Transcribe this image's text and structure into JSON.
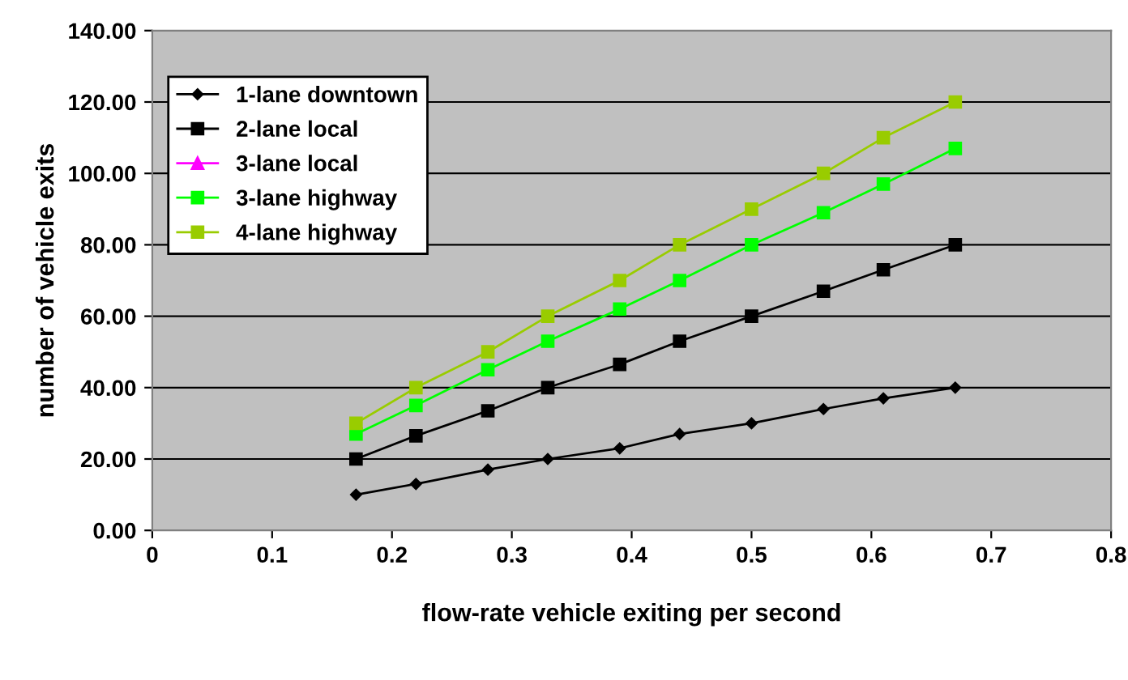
{
  "chart_data": {
    "type": "line",
    "xlabel": "flow-rate vehicle exiting per second",
    "ylabel": "number of vehicle exits",
    "x": [
      0.17,
      0.22,
      0.28,
      0.33,
      0.39,
      0.44,
      0.5,
      0.56,
      0.61,
      0.67
    ],
    "series": [
      {
        "name": "1-lane downtown",
        "color": "#000000",
        "marker": "diamond",
        "values": [
          10,
          13,
          17,
          20,
          23,
          27,
          30,
          34,
          37,
          40
        ]
      },
      {
        "name": "2-lane local",
        "color": "#000000",
        "marker": "square",
        "values": [
          20,
          26.5,
          33.5,
          40,
          46.5,
          53,
          60,
          67,
          73,
          80
        ]
      },
      {
        "name": "3-lane local",
        "color": "#ff00ff",
        "marker": "triangle",
        "values": [
          null,
          null,
          null,
          null,
          null,
          null,
          null,
          null,
          null,
          null
        ]
      },
      {
        "name": "3-lane highway",
        "color": "#00ff00",
        "marker": "square",
        "values": [
          27,
          35,
          45,
          53,
          62,
          70,
          80,
          89,
          97,
          107
        ]
      },
      {
        "name": "4-lane highway",
        "color": "#99cc00",
        "marker": "square",
        "values": [
          30,
          40,
          50,
          60,
          70,
          80,
          90,
          100,
          110,
          120
        ]
      }
    ],
    "xlim": [
      0,
      0.8
    ],
    "xticks": [
      {
        "value": 0,
        "label": "0"
      },
      0.1,
      0.2,
      0.3,
      0.4,
      0.5,
      0.6,
      0.7,
      0.8
    ],
    "ylim": [
      0,
      140
    ],
    "yticks": [
      {
        "value": 0,
        "label": "0.00"
      },
      {
        "value": 20,
        "label": "20.00"
      },
      {
        "value": 40,
        "label": "40.00"
      },
      {
        "value": 60,
        "label": "60.00"
      },
      {
        "value": 80,
        "label": "80.00"
      },
      {
        "value": 100,
        "label": "100.00"
      },
      {
        "value": 120,
        "label": "120.00"
      },
      {
        "value": 140,
        "label": "140.00"
      }
    ],
    "grid": "y",
    "legend": "top left"
  }
}
